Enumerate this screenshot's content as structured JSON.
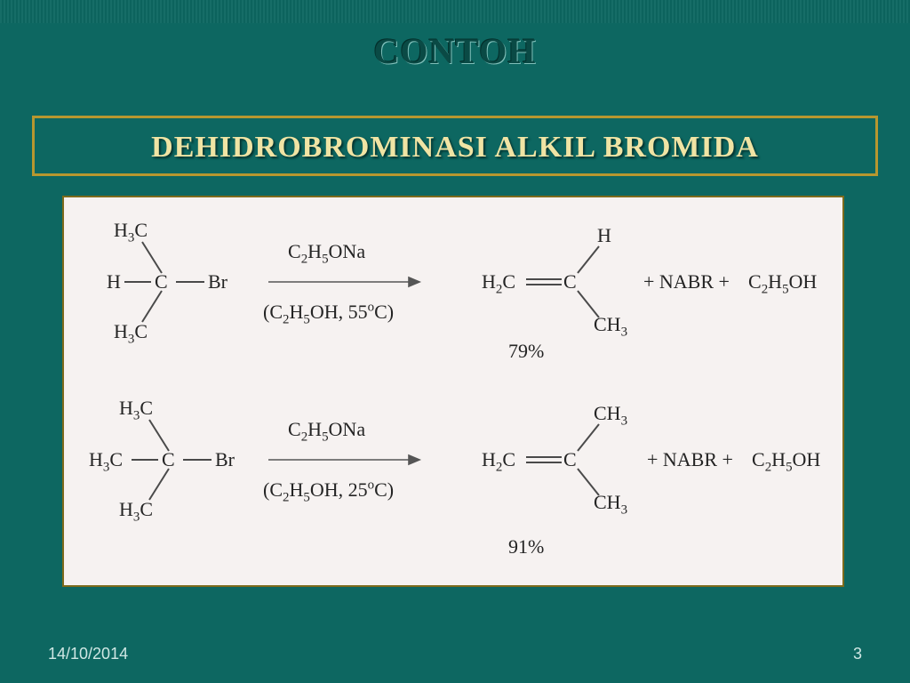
{
  "slide": {
    "title": "CONTOH",
    "subtitle": "DEHIDROBROMINASI ALKIL BROMIDA",
    "footer_date": "14/10/2014",
    "page_number": "3",
    "background_color": "#0d6761",
    "accent_border_color": "#b7972f",
    "subtitle_color": "#f0e4a4",
    "panel_bg": "#f6f2f1",
    "panel_border": "#7d6b1c",
    "chem_text_color": "#242424"
  },
  "reaction1": {
    "left_top": "H<sub>3</sub>C",
    "left_mid_h": "H",
    "left_mid_c": "C",
    "left_mid_br": "Br",
    "left_bot": "H<sub>3</sub>C",
    "reagent_top": "C<sub>2</sub>H<sub>5</sub>ONa",
    "reagent_bot": "(C<sub>2</sub>H<sub>5</sub>OH, 55<sup>o</sup>C)",
    "prod_h": "H",
    "prod_h2c": "H<sub>2</sub>C",
    "prod_c": "C",
    "prod_ch3": "CH<sub>3</sub>",
    "plus1": "+ NABR  +",
    "byprod": "C<sub>2</sub>H<sub>5</sub>OH",
    "yield": "79%"
  },
  "reaction2": {
    "left_top": "H<sub>3</sub>C",
    "left_mid_h3c": "H<sub>3</sub>C",
    "left_mid_c": "C",
    "left_mid_br": "Br",
    "left_bot": "H<sub>3</sub>C",
    "reagent_top": "C<sub>2</sub>H<sub>5</sub>ONa",
    "reagent_bot": "(C<sub>2</sub>H<sub>5</sub>OH, 25<sup>o</sup>C)",
    "prod_ch3_top": "CH<sub>3</sub>",
    "prod_h2c": "H<sub>2</sub>C",
    "prod_c": "C",
    "prod_ch3_bot": "CH<sub>3</sub>",
    "plus1": "+ NABR  +",
    "byprod": "C<sub>2</sub>H<sub>5</sub>OH",
    "yield": "91%"
  },
  "bonds": {
    "stroke": "#4a4a4a",
    "stroke_width": 2,
    "arrow_stroke": "#555555"
  }
}
